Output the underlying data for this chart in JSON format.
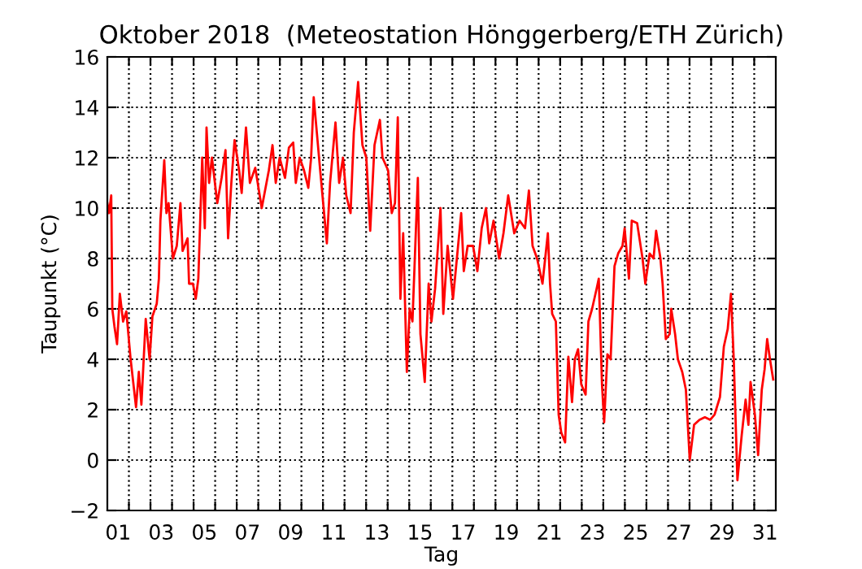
{
  "chart_data": {
    "type": "line",
    "title": "Oktober 2018  (Meteostation Hönggerberg/ETH Zürich)",
    "xlabel": "Tag",
    "ylabel": "Taupunkt (°C)",
    "xlim": [
      1,
      32
    ],
    "ylim": [
      -2,
      16
    ],
    "xticks": [
      {
        "value": 1.5,
        "label": "01"
      },
      {
        "value": 3.5,
        "label": "03"
      },
      {
        "value": 5.5,
        "label": "05"
      },
      {
        "value": 7.5,
        "label": "07"
      },
      {
        "value": 9.5,
        "label": "09"
      },
      {
        "value": 11.5,
        "label": "11"
      },
      {
        "value": 13.5,
        "label": "13"
      },
      {
        "value": 15.5,
        "label": "15"
      },
      {
        "value": 17.5,
        "label": "17"
      },
      {
        "value": 19.5,
        "label": "19"
      },
      {
        "value": 21.5,
        "label": "21"
      },
      {
        "value": 23.5,
        "label": "23"
      },
      {
        "value": 25.5,
        "label": "25"
      },
      {
        "value": 27.5,
        "label": "27"
      },
      {
        "value": 29.5,
        "label": "29"
      },
      {
        "value": 31.5,
        "label": "31"
      },
      {
        "value": 2,
        "label": null
      },
      {
        "value": 3,
        "label": null
      },
      {
        "value": 4,
        "label": null
      },
      {
        "value": 5,
        "label": null
      },
      {
        "value": 6,
        "label": null
      },
      {
        "value": 7,
        "label": null
      },
      {
        "value": 8,
        "label": null
      },
      {
        "value": 9,
        "label": null
      },
      {
        "value": 10,
        "label": null
      },
      {
        "value": 11,
        "label": null
      },
      {
        "value": 12,
        "label": null
      },
      {
        "value": 13,
        "label": null
      },
      {
        "value": 14,
        "label": null
      },
      {
        "value": 15,
        "label": null
      },
      {
        "value": 16,
        "label": null
      },
      {
        "value": 17,
        "label": null
      },
      {
        "value": 18,
        "label": null
      },
      {
        "value": 19,
        "label": null
      },
      {
        "value": 20,
        "label": null
      },
      {
        "value": 21,
        "label": null
      },
      {
        "value": 22,
        "label": null
      },
      {
        "value": 23,
        "label": null
      },
      {
        "value": 24,
        "label": null
      },
      {
        "value": 25,
        "label": null
      },
      {
        "value": 26,
        "label": null
      },
      {
        "value": 27,
        "label": null
      },
      {
        "value": 28,
        "label": null
      },
      {
        "value": 29,
        "label": null
      },
      {
        "value": 30,
        "label": null
      },
      {
        "value": 31,
        "label": null
      }
    ],
    "yticks": [
      {
        "value": -2,
        "label": "−2"
      },
      0,
      2,
      4,
      6,
      8,
      10,
      12,
      14,
      16
    ],
    "grid": true,
    "line_style": "solid",
    "marker": "none",
    "series": [
      {
        "color": "#ff0000",
        "x": [
          1.0,
          1.08,
          1.18,
          1.23,
          1.33,
          1.45,
          1.58,
          1.73,
          1.88,
          2.08,
          2.33,
          2.46,
          2.58,
          2.78,
          2.96,
          3.09,
          3.29,
          3.39,
          3.46,
          3.64,
          3.74,
          3.84,
          4.04,
          4.22,
          4.39,
          4.49,
          4.72,
          4.79,
          4.97,
          5.1,
          5.22,
          5.4,
          5.52,
          5.6,
          5.72,
          5.85,
          6.1,
          6.3,
          6.48,
          6.6,
          6.75,
          6.9,
          7.11,
          7.23,
          7.43,
          7.61,
          7.86,
          8.16,
          8.49,
          8.66,
          8.81,
          8.99,
          9.24,
          9.42,
          9.62,
          9.74,
          9.92,
          10.12,
          10.32,
          10.45,
          10.57,
          10.87,
          11.18,
          11.33,
          11.58,
          11.75,
          11.93,
          12.08,
          12.28,
          12.43,
          12.63,
          12.83,
          13.01,
          13.19,
          13.39,
          13.64,
          13.76,
          14.02,
          14.19,
          14.34,
          14.47,
          14.59,
          14.72,
          14.89,
          15.02,
          15.15,
          15.4,
          15.52,
          15.72,
          15.9,
          16.03,
          16.2,
          16.45,
          16.58,
          16.78,
          17.03,
          17.21,
          17.41,
          17.53,
          17.71,
          17.96,
          18.16,
          18.36,
          18.56,
          18.71,
          18.91,
          19.17,
          19.37,
          19.59,
          19.87,
          20.12,
          20.37,
          20.55,
          20.72,
          20.93,
          21.18,
          21.43,
          21.53,
          21.63,
          21.8,
          21.93,
          22.05,
          22.23,
          22.38,
          22.55,
          22.68,
          22.83,
          22.98,
          23.18,
          23.31,
          23.48,
          23.69,
          23.79,
          23.94,
          24.04,
          24.19,
          24.34,
          24.52,
          24.69,
          24.89,
          24.99,
          25.19,
          25.32,
          25.57,
          25.82,
          25.95,
          26.15,
          26.33,
          26.45,
          26.65,
          26.75,
          26.9,
          27.08,
          27.15,
          27.33,
          27.46,
          27.66,
          27.83,
          28.01,
          28.21,
          28.46,
          28.71,
          28.96,
          29.16,
          29.41,
          29.59,
          29.77,
          29.92,
          30.05,
          30.22,
          30.42,
          30.6,
          30.73,
          30.83,
          31.03,
          31.18,
          31.35,
          31.48,
          31.6,
          31.73,
          31.88
        ],
        "values": [
          10.2,
          9.8,
          10.5,
          6.0,
          5.3,
          4.6,
          6.6,
          5.5,
          5.9,
          4.0,
          2.1,
          3.5,
          2.2,
          5.6,
          4.0,
          5.7,
          6.2,
          7.2,
          9.5,
          11.9,
          9.8,
          10.2,
          8.0,
          8.5,
          10.2,
          8.3,
          8.8,
          7.0,
          7.0,
          6.4,
          7.2,
          12.0,
          9.2,
          13.2,
          11.0,
          12.0,
          10.2,
          11.2,
          12.3,
          8.8,
          11.0,
          12.7,
          11.5,
          10.6,
          13.2,
          11.0,
          11.6,
          10.0,
          11.5,
          12.5,
          11.0,
          12.0,
          11.2,
          12.4,
          12.6,
          11.0,
          12.0,
          11.5,
          10.8,
          12.0,
          14.4,
          11.5,
          8.6,
          11.0,
          13.4,
          11.0,
          12.0,
          10.5,
          9.8,
          13.0,
          15.0,
          12.5,
          12.0,
          9.1,
          12.5,
          13.5,
          12.0,
          11.5,
          9.8,
          10.2,
          13.6,
          6.4,
          9.0,
          3.5,
          6.0,
          5.5,
          11.2,
          5.0,
          3.1,
          7.0,
          5.5,
          6.8,
          10.0,
          5.8,
          8.5,
          6.4,
          8.0,
          9.8,
          7.5,
          8.5,
          8.5,
          7.5,
          9.2,
          10.0,
          8.6,
          9.5,
          8.0,
          9.0,
          10.5,
          9.0,
          9.5,
          9.2,
          10.7,
          8.5,
          8.0,
          7.0,
          9.0,
          7.0,
          5.8,
          5.5,
          1.8,
          1.1,
          0.7,
          4.1,
          2.3,
          4.0,
          4.4,
          3.0,
          2.6,
          5.5,
          6.0,
          6.8,
          7.2,
          3.0,
          1.5,
          4.2,
          4.0,
          7.7,
          8.2,
          8.5,
          9.2,
          7.2,
          9.5,
          9.4,
          8.0,
          7.0,
          8.2,
          8.0,
          9.1,
          8.0,
          7.0,
          4.8,
          5.0,
          6.0,
          5.0,
          4.0,
          3.5,
          2.8,
          0.0,
          1.4,
          1.6,
          1.7,
          1.6,
          1.8,
          2.5,
          4.5,
          5.2,
          6.6,
          4.0,
          -0.8,
          1.0,
          2.4,
          1.4,
          3.1,
          1.8,
          0.2,
          2.8,
          3.6,
          4.8,
          4.0,
          3.2
        ]
      }
    ]
  }
}
